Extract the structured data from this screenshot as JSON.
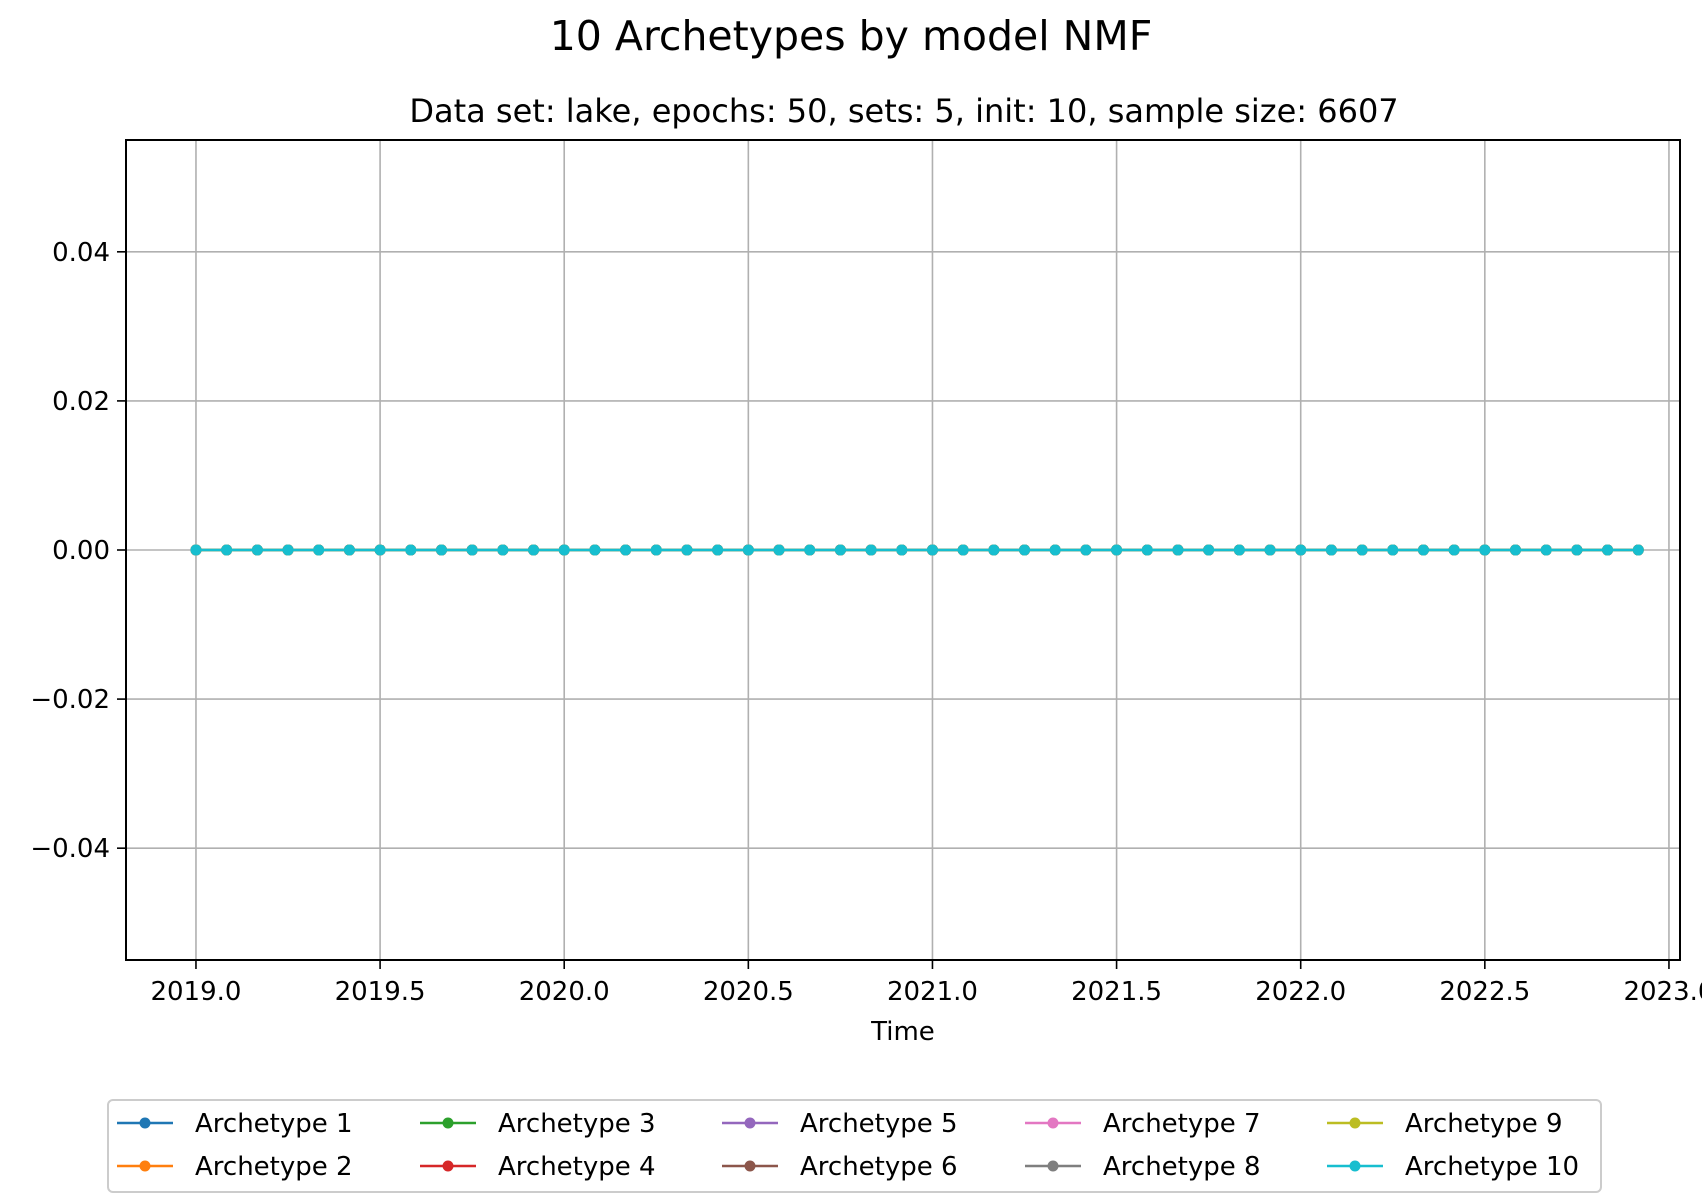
{
  "chart_data": {
    "type": "line",
    "title": "10 Archetypes by model NMF",
    "subtitle": "Data set: lake, epochs: 50, sets: 5, init: 10, sample size: 6607",
    "xlabel": "Time",
    "ylabel": "",
    "xlim": [
      2018.81,
      2023.03
    ],
    "ylim": [
      -0.055,
      0.055
    ],
    "x_ticks": [
      2019.0,
      2019.5,
      2020.0,
      2020.5,
      2021.0,
      2021.5,
      2022.0,
      2022.5,
      2023.0
    ],
    "x_tick_labels": [
      "2019.0",
      "2019.5",
      "2020.0",
      "2020.5",
      "2021.0",
      "2021.5",
      "2022.0",
      "2022.5",
      "2023.0"
    ],
    "y_ticks": [
      0.04,
      0.02,
      0.0,
      -0.02,
      -0.04
    ],
    "y_tick_labels": [
      "0.04",
      "0.02",
      "0.00",
      "−0.02",
      "−0.04"
    ],
    "grid": true,
    "legend_placement": "bottom-center",
    "x": [
      2019.0,
      2019.0833,
      2019.1667,
      2019.25,
      2019.3333,
      2019.4167,
      2019.5,
      2019.5833,
      2019.6667,
      2019.75,
      2019.8333,
      2019.9167,
      2020.0,
      2020.0833,
      2020.1667,
      2020.25,
      2020.3333,
      2020.4167,
      2020.5,
      2020.5833,
      2020.6667,
      2020.75,
      2020.8333,
      2020.9167,
      2021.0,
      2021.0833,
      2021.1667,
      2021.25,
      2021.3333,
      2021.4167,
      2021.5,
      2021.5833,
      2021.6667,
      2021.75,
      2021.8333,
      2021.9167,
      2022.0,
      2022.0833,
      2022.1667,
      2022.25,
      2022.3333,
      2022.4167,
      2022.5,
      2022.5833,
      2022.6667,
      2022.75,
      2022.8333,
      2022.9167
    ],
    "series": [
      {
        "name": "Archetype 1",
        "color": "#1f77b4",
        "value": 0
      },
      {
        "name": "Archetype 2",
        "color": "#ff7f0e",
        "value": 0
      },
      {
        "name": "Archetype 3",
        "color": "#2ca02c",
        "value": 0
      },
      {
        "name": "Archetype 4",
        "color": "#d62728",
        "value": 0
      },
      {
        "name": "Archetype 5",
        "color": "#9467bd",
        "value": 0
      },
      {
        "name": "Archetype 6",
        "color": "#8c564b",
        "value": 0
      },
      {
        "name": "Archetype 7",
        "color": "#e377c2",
        "value": 0
      },
      {
        "name": "Archetype 8",
        "color": "#7f7f7f",
        "value": 0
      },
      {
        "name": "Archetype 9",
        "color": "#bcbd22",
        "value": 0
      },
      {
        "name": "Archetype 10",
        "color": "#17becf",
        "value": 0
      }
    ]
  }
}
